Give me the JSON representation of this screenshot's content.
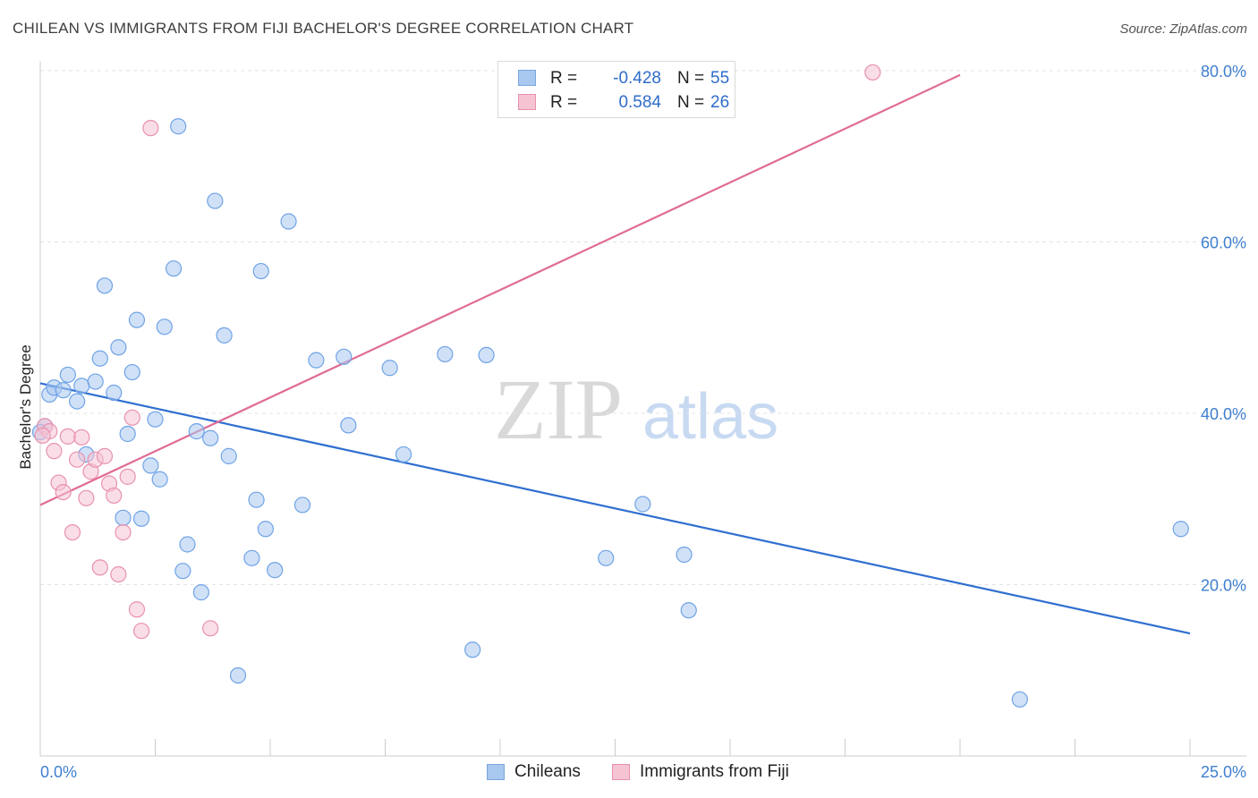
{
  "title": "CHILEAN VS IMMIGRANTS FROM FIJI BACHELOR'S DEGREE CORRELATION CHART",
  "source": "Source: ZipAtlas.com",
  "watermark": {
    "zip": "ZIP",
    "atlas": "atlas"
  },
  "legend": {
    "rows": [
      {
        "r_label": "R =",
        "r_value": "-0.428",
        "n_label": "N =",
        "n_value": "55",
        "color": "#a9c8f0",
        "border": "#7aa6de"
      },
      {
        "r_label": "R =",
        "r_value": "0.584",
        "n_label": "N =",
        "n_value": "26",
        "color": "#f6c3d3",
        "border": "#e891ad"
      }
    ]
  },
  "bottom_legend": [
    {
      "label": "Chileans",
      "color": "#a9c8f0",
      "border": "#7aa6de"
    },
    {
      "label": "Immigrants from Fiji",
      "color": "#f6c3d3",
      "border": "#e891ad"
    }
  ],
  "chart_data": {
    "type": "scatter",
    "title": "CHILEAN VS IMMIGRANTS FROM FIJI BACHELOR'S DEGREE CORRELATION CHART",
    "xlabel": "",
    "ylabel": "Bachelor's Degree",
    "xlim": [
      0,
      25
    ],
    "ylim": [
      0,
      80
    ],
    "x_tick_labels": [
      "0.0%",
      "25.0%"
    ],
    "y_ticks": [
      20,
      40,
      60,
      80
    ],
    "y_tick_labels": [
      "20.0%",
      "40.0%",
      "60.0%",
      "80.0%"
    ],
    "grid": true,
    "legend_position": "top-center",
    "series": [
      {
        "name": "Chileans",
        "color": "#6fa3e6",
        "fill": "#a9c8f0",
        "trend": {
          "x": [
            0.0,
            25.0
          ],
          "y": [
            43.5,
            14.3
          ],
          "color": "#2f6fd0"
        },
        "points": [
          [
            0.1,
            38.5
          ],
          [
            0.2,
            42.2
          ],
          [
            0.3,
            43.0
          ],
          [
            0.5,
            42.7
          ],
          [
            0.6,
            44.5
          ],
          [
            0.8,
            41.4
          ],
          [
            0.9,
            43.2
          ],
          [
            1.0,
            35.2
          ],
          [
            1.2,
            43.7
          ],
          [
            1.3,
            46.4
          ],
          [
            1.4,
            54.9
          ],
          [
            1.6,
            42.4
          ],
          [
            1.7,
            47.7
          ],
          [
            1.8,
            27.8
          ],
          [
            1.9,
            37.6
          ],
          [
            2.0,
            44.8
          ],
          [
            2.1,
            50.9
          ],
          [
            2.2,
            27.7
          ],
          [
            2.4,
            33.9
          ],
          [
            2.5,
            39.3
          ],
          [
            2.6,
            32.3
          ],
          [
            2.7,
            50.1
          ],
          [
            2.9,
            56.9
          ],
          [
            3.0,
            73.5
          ],
          [
            3.1,
            21.6
          ],
          [
            3.2,
            24.7
          ],
          [
            3.4,
            37.9
          ],
          [
            3.5,
            19.1
          ],
          [
            3.7,
            37.1
          ],
          [
            3.8,
            64.8
          ],
          [
            4.0,
            49.1
          ],
          [
            4.1,
            35.0
          ],
          [
            4.3,
            9.4
          ],
          [
            4.6,
            23.1
          ],
          [
            4.7,
            29.9
          ],
          [
            4.8,
            56.6
          ],
          [
            4.9,
            26.5
          ],
          [
            5.1,
            21.7
          ],
          [
            5.4,
            62.4
          ],
          [
            5.7,
            29.3
          ],
          [
            6.0,
            46.2
          ],
          [
            6.6,
            46.6
          ],
          [
            6.7,
            38.6
          ],
          [
            7.6,
            45.3
          ],
          [
            7.9,
            35.2
          ],
          [
            8.8,
            46.9
          ],
          [
            9.4,
            12.4
          ],
          [
            9.7,
            46.8
          ],
          [
            12.3,
            23.1
          ],
          [
            13.1,
            29.4
          ],
          [
            14.0,
            23.5
          ],
          [
            14.1,
            17.0
          ],
          [
            21.3,
            6.6
          ],
          [
            24.8,
            26.5
          ],
          [
            0.0,
            37.8
          ]
        ]
      },
      {
        "name": "Immigrants from Fiji",
        "color": "#e891ad",
        "fill": "#f6c3d3",
        "trend": {
          "x": [
            0.0,
            20.0
          ],
          "y": [
            29.3,
            79.5
          ],
          "color": "#e06c96"
        },
        "points": [
          [
            0.1,
            38.5
          ],
          [
            0.2,
            37.9
          ],
          [
            0.3,
            35.6
          ],
          [
            0.4,
            31.9
          ],
          [
            0.5,
            30.8
          ],
          [
            0.6,
            37.3
          ],
          [
            0.7,
            26.1
          ],
          [
            0.8,
            34.6
          ],
          [
            0.9,
            37.2
          ],
          [
            1.0,
            30.1
          ],
          [
            1.1,
            33.2
          ],
          [
            1.2,
            34.6
          ],
          [
            1.3,
            22.0
          ],
          [
            1.4,
            35.0
          ],
          [
            1.5,
            31.8
          ],
          [
            1.6,
            30.4
          ],
          [
            1.7,
            21.2
          ],
          [
            1.8,
            26.1
          ],
          [
            1.9,
            32.6
          ],
          [
            2.0,
            39.5
          ],
          [
            2.1,
            17.1
          ],
          [
            2.2,
            14.6
          ],
          [
            2.4,
            73.3
          ],
          [
            3.7,
            14.9
          ],
          [
            18.1,
            79.8
          ],
          [
            0.05,
            37.4
          ]
        ]
      }
    ]
  }
}
